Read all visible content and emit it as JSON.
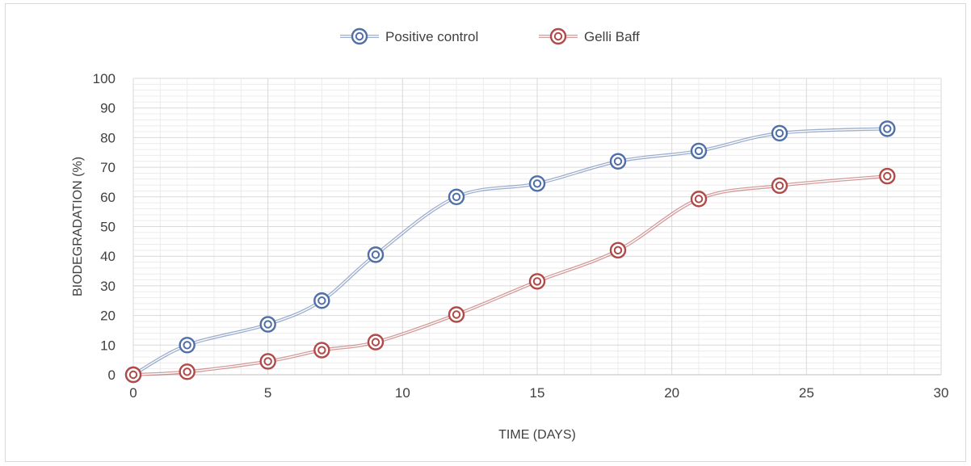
{
  "chart_data": {
    "type": "line",
    "title": "",
    "xlabel": "TIME (DAYS)",
    "ylabel": "BIODEGRADATION (%)",
    "xlim": [
      0,
      30
    ],
    "ylim": [
      0,
      100
    ],
    "x_ticks": [
      0,
      5,
      10,
      15,
      20,
      25,
      30
    ],
    "y_ticks": [
      0,
      10,
      20,
      30,
      40,
      50,
      60,
      70,
      80,
      90,
      100
    ],
    "grid": true,
    "legend_position": "top",
    "series": [
      {
        "name": "Positive control",
        "color": "#4f6fa8",
        "x": [
          0,
          2,
          5,
          7,
          9,
          12,
          15,
          18,
          21,
          24,
          28
        ],
        "y": [
          0,
          10,
          17,
          25,
          40.5,
          60,
          64.5,
          72,
          75.5,
          81.5,
          83
        ]
      },
      {
        "name": "Gelli Baff",
        "color": "#b04a48",
        "x": [
          0,
          2,
          5,
          7,
          9,
          12,
          15,
          18,
          21,
          24,
          28
        ],
        "y": [
          0,
          1,
          4.5,
          8.3,
          11,
          20.3,
          31.5,
          42,
          59.3,
          63.8,
          67
        ]
      }
    ]
  }
}
